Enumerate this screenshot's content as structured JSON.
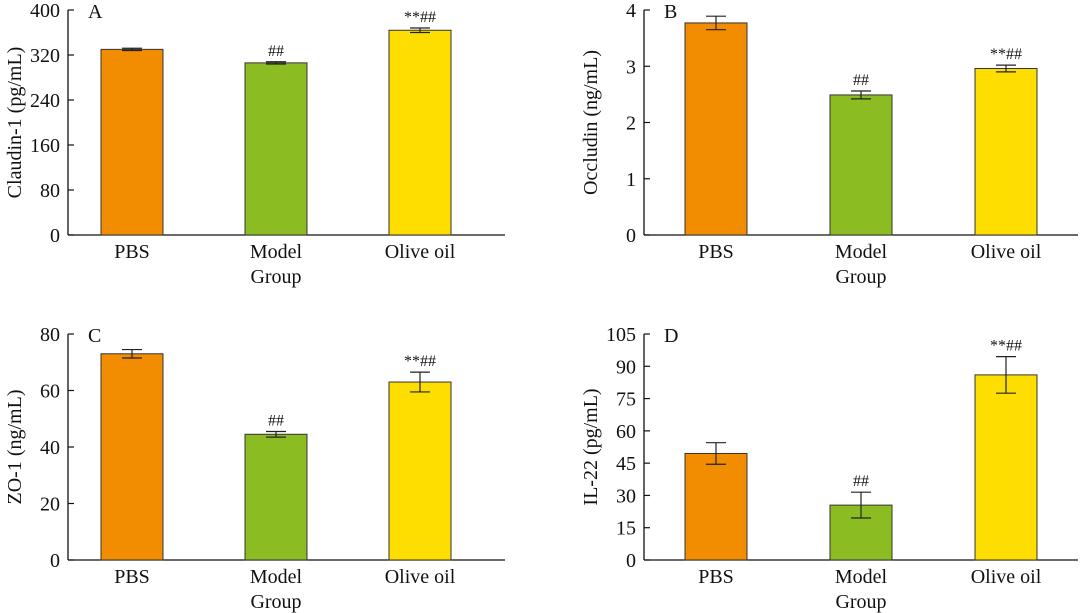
{
  "colors": {
    "PBS": "#f28c00",
    "Model Group": "#8bbc21",
    "Olive oil": "#fede00",
    "axis": "#111111",
    "bar_stroke": "#333333"
  },
  "chart_data": [
    {
      "type": "bar",
      "panel_label": "A",
      "title": "",
      "xlabel": "",
      "ylabel": "Claudin-1 (pg/mL)",
      "ylim": [
        0,
        400
      ],
      "yticks": [
        0,
        80,
        160,
        240,
        320,
        400
      ],
      "categories": [
        "PBS",
        "Model\nGroup",
        "Olive oil"
      ],
      "series": [
        {
          "values": [
            330,
            306,
            364
          ],
          "errors": [
            2,
            2,
            4
          ],
          "annotations": [
            "",
            "##",
            "**##"
          ]
        }
      ],
      "grid": false
    },
    {
      "type": "bar",
      "panel_label": "B",
      "title": "",
      "xlabel": "",
      "ylabel": "Occludin (ng/mL)",
      "ylim": [
        0,
        4
      ],
      "yticks": [
        0,
        1,
        2,
        3,
        4
      ],
      "categories": [
        "PBS",
        "Model\nGroup",
        "Olive oil"
      ],
      "series": [
        {
          "values": [
            3.77,
            2.49,
            2.96
          ],
          "errors": [
            0.12,
            0.07,
            0.06
          ],
          "annotations": [
            "",
            "##",
            "**##"
          ]
        }
      ],
      "grid": false
    },
    {
      "type": "bar",
      "panel_label": "C",
      "title": "",
      "xlabel": "",
      "ylabel": "ZO-1 (ng/mL)",
      "ylim": [
        0,
        80
      ],
      "yticks": [
        0,
        20,
        40,
        60,
        80
      ],
      "categories": [
        "PBS",
        "Model\nGroup",
        "Olive oil"
      ],
      "series": [
        {
          "values": [
            73,
            44.5,
            63
          ],
          "errors": [
            1.5,
            1,
            3.5
          ],
          "annotations": [
            "",
            "##",
            "**##"
          ]
        }
      ],
      "grid": false
    },
    {
      "type": "bar",
      "panel_label": "D",
      "title": "",
      "xlabel": "",
      "ylabel": "IL-22 (pg/mL)",
      "ylim": [
        0,
        105
      ],
      "yticks": [
        0,
        15,
        30,
        45,
        60,
        75,
        90,
        105
      ],
      "categories": [
        "PBS",
        "Model\nGroup",
        "Olive oil"
      ],
      "series": [
        {
          "values": [
            49.5,
            25.5,
            86
          ],
          "errors": [
            5,
            6,
            8.5
          ],
          "annotations": [
            "",
            "##",
            "**##"
          ]
        }
      ],
      "grid": false
    }
  ]
}
